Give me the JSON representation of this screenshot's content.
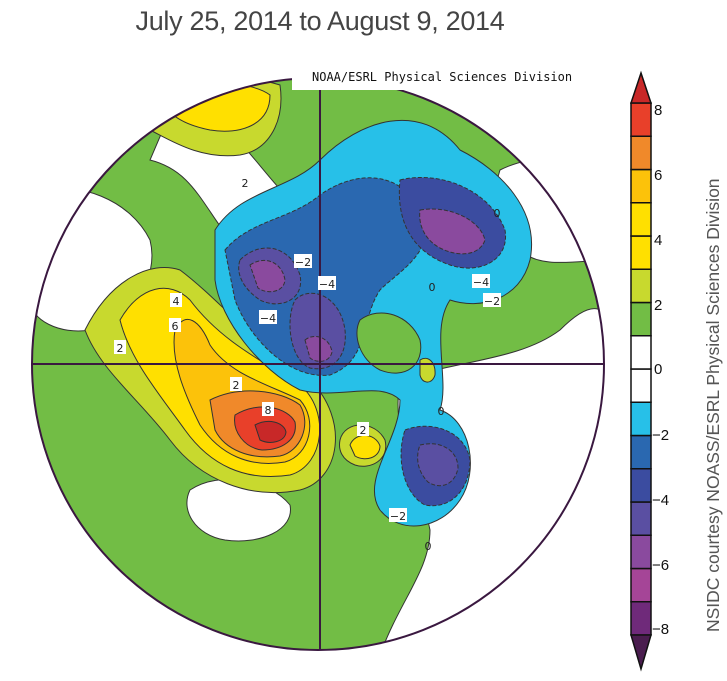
{
  "title": "July 25, 2014 to August 9, 2014",
  "map_credit": "NOAA/ESRL Physical Sciences Division",
  "side_credit": "NSIDC courtesy NOASS/ESRL Physical Sciences Division",
  "projection": "north polar stereographic",
  "colorbar": {
    "ticks": [
      "8",
      "6",
      "4",
      "2",
      "0",
      "−2",
      "−4",
      "−6",
      "−8"
    ],
    "range": [
      -8,
      8
    ],
    "step": 1,
    "extend": "both",
    "colors": [
      "#6f2a7a",
      "#a54597",
      "#8a4a9e",
      "#5a4fa2",
      "#3b4ca0",
      "#2a68b0",
      "#27c0e8",
      "#ffffff",
      "#ffffff",
      "#72bd45",
      "#c8d92e",
      "#ffe000",
      "#ffe000",
      "#fcc20a",
      "#f0892a",
      "#e8402a"
    ],
    "low_tip_color": "#4a1d4f",
    "high_tip_color": "#c82828"
  },
  "contour_labels": [
    "2",
    "−2",
    "−4",
    "−4",
    "−4",
    "−2",
    "0",
    "0",
    "2",
    "4",
    "6",
    "2",
    "8",
    "2",
    "0",
    "−2",
    "0"
  ]
}
